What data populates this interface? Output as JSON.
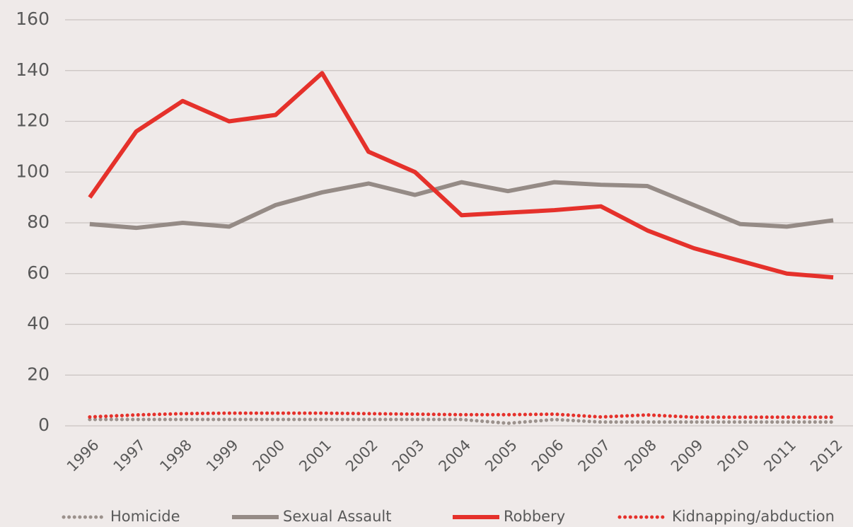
{
  "chart_data": {
    "type": "line",
    "categories": [
      "1996",
      "1997",
      "1998",
      "1999",
      "2000",
      "2001",
      "2002",
      "2003",
      "2004",
      "2005",
      "2006",
      "2007",
      "2008",
      "2009",
      "2010",
      "2011",
      "2012"
    ],
    "series": [
      {
        "name": "Homicide",
        "color": "#9b918c",
        "dash": "dotted",
        "values": [
          2.5,
          2.5,
          2.5,
          2.5,
          2.5,
          2.5,
          2.5,
          2.5,
          2.5,
          1,
          2.5,
          1.5,
          1.5,
          1.5,
          1.5,
          1.5,
          1.5
        ]
      },
      {
        "name": "Sexual Assault",
        "color": "#958b86",
        "dash": "solid",
        "values": [
          79.5,
          78,
          80,
          78.5,
          87,
          92,
          95.5,
          91,
          96,
          92.5,
          96,
          95,
          94.5,
          87,
          79.5,
          78.5,
          81
        ]
      },
      {
        "name": "Robbery",
        "color": "#e5312b",
        "dash": "solid",
        "values": [
          90,
          116,
          128,
          120,
          122.5,
          139,
          108,
          100,
          83,
          84,
          85,
          86.5,
          77,
          70,
          65,
          60,
          58.5
        ]
      },
      {
        "name": "Kidnapping/abduction",
        "color": "#e5312b",
        "dash": "dotted",
        "values": [
          3.5,
          4.3,
          4.8,
          5,
          5,
          5,
          4.8,
          4.6,
          4.4,
          4.4,
          4.6,
          3.5,
          4.3,
          3.4,
          3.4,
          3.4,
          3.4
        ]
      }
    ],
    "ylim": [
      0,
      160
    ],
    "yticks": [
      0,
      20,
      40,
      60,
      80,
      100,
      120,
      140,
      160
    ],
    "grid": true,
    "legend": "bottom"
  }
}
